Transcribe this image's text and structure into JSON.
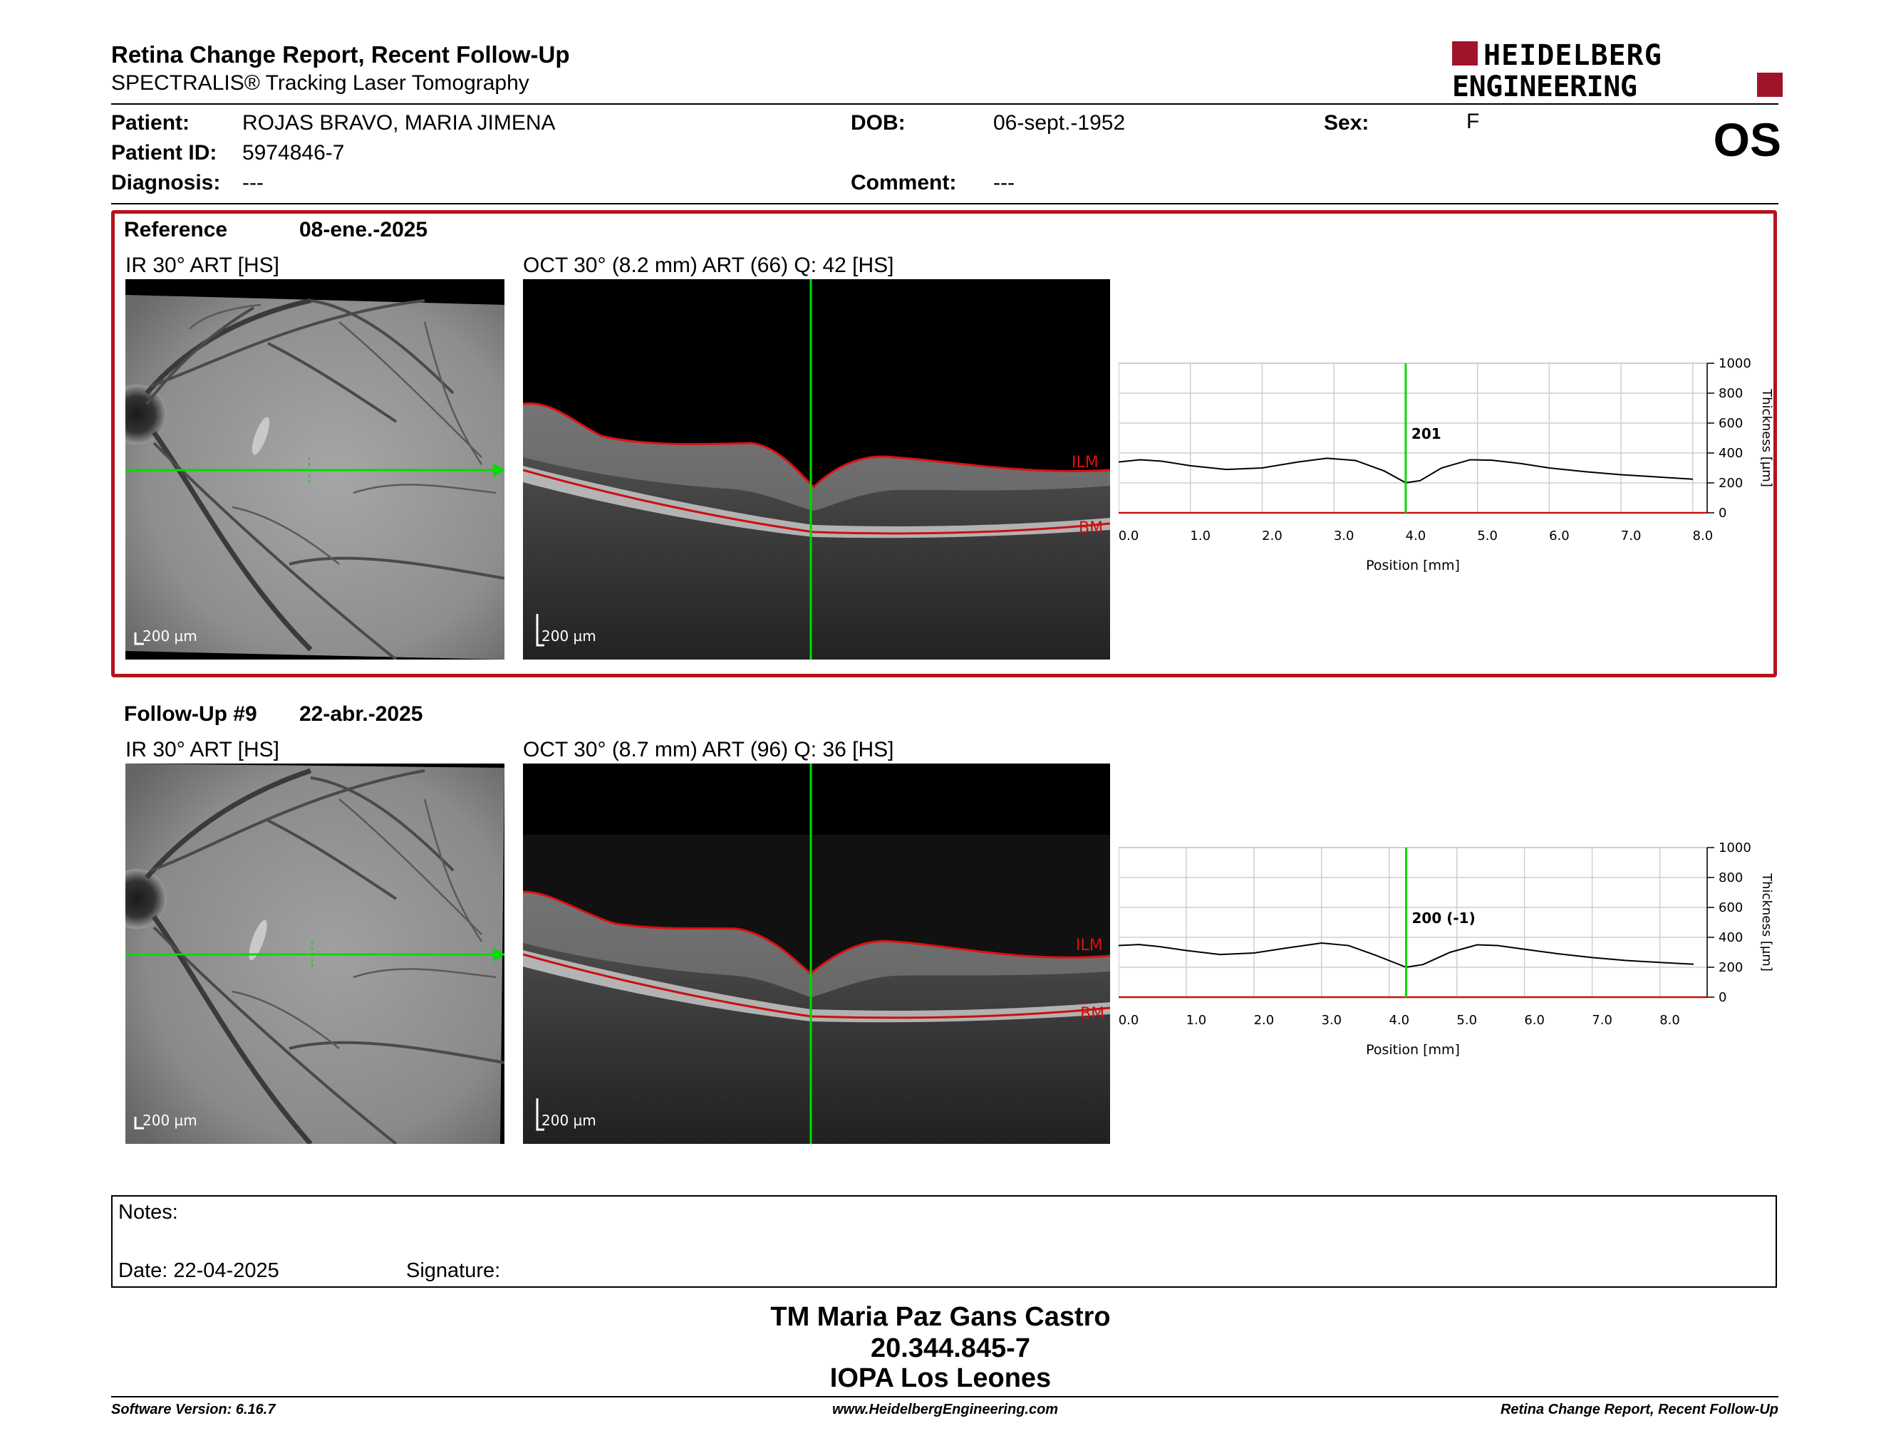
{
  "header": {
    "title": "Retina Change Report, Recent Follow-Up",
    "subtitle": "SPECTRALIS® Tracking Laser Tomography",
    "logo_line1": "HEIDELBERG",
    "logo_line2": "ENGINEERING",
    "eye": "OS"
  },
  "patient": {
    "name_label": "Patient:",
    "name": "ROJAS BRAVO, MARIA JIMENA",
    "id_label": "Patient ID:",
    "id": "5974846-7",
    "diagnosis_label": "Diagnosis:",
    "diagnosis": "---",
    "dob_label": "DOB:",
    "dob": "06-sept.-1952",
    "comment_label": "Comment:",
    "comment": "---",
    "sex_label": "Sex:",
    "sex": "F"
  },
  "colors": {
    "frame": "#b3141c",
    "scan_line": "#00dd00",
    "ilm": "#e01010",
    "bm": "#c81010",
    "logo": "#a0142a"
  },
  "reference": {
    "title": "Reference",
    "date": "08-ene.-2025",
    "ir_title": "IR 30° ART [HS]",
    "oct_title": "OCT 30° (8.2 mm) ART (66) Q: 42 [HS]",
    "ir_scale": "200 µm",
    "oct_scale": "200 µm",
    "ilm_label": "ILM",
    "bm_label": "BM",
    "cursor_position": 4.0
  },
  "followup": {
    "title": "Follow-Up #9",
    "date": "22-abr.-2025",
    "ir_title": "IR 30° ART [HS]",
    "oct_title": "OCT 30° (8.7 mm) ART (96) Q: 36 [HS]",
    "ir_scale": "200 µm",
    "oct_scale": "200 µm",
    "ilm_label": "ILM",
    "bm_label": "BM",
    "cursor_position": 4.25
  },
  "chart_data": [
    {
      "type": "line",
      "xlabel": "Position [mm]",
      "ylabel": "Thickness [µm]",
      "xlim": [
        0,
        8.2
      ],
      "ylim": [
        0,
        1000
      ],
      "x_ticks": [
        "0.0",
        "1.0",
        "2.0",
        "3.0",
        "4.0",
        "5.0",
        "6.0",
        "7.0",
        "8.0"
      ],
      "y_ticks": [
        "0",
        "200",
        "400",
        "600",
        "800",
        "1000"
      ],
      "grid": true,
      "cursor_x": 4.0,
      "cursor_label": "201",
      "x": [
        0,
        0.3,
        0.6,
        1.0,
        1.5,
        2.0,
        2.5,
        2.9,
        3.3,
        3.7,
        4.0,
        4.2,
        4.5,
        4.9,
        5.2,
        5.6,
        6.0,
        6.5,
        7.0,
        7.5,
        8.0
      ],
      "values": [
        340,
        355,
        345,
        315,
        290,
        300,
        340,
        365,
        350,
        280,
        201,
        215,
        300,
        355,
        352,
        330,
        300,
        275,
        255,
        240,
        225
      ]
    },
    {
      "type": "line",
      "xlabel": "Position [mm]",
      "ylabel": "Thickness [µm]",
      "xlim": [
        0,
        8.7
      ],
      "ylim": [
        0,
        1000
      ],
      "x_ticks": [
        "0.0",
        "1.0",
        "2.0",
        "3.0",
        "4.0",
        "5.0",
        "6.0",
        "7.0",
        "8.0"
      ],
      "y_ticks": [
        "0",
        "200",
        "400",
        "600",
        "800",
        "1000"
      ],
      "grid": true,
      "cursor_x": 4.25,
      "cursor_label": "200 (-1)",
      "x": [
        0,
        0.3,
        0.6,
        1.0,
        1.5,
        2.0,
        2.5,
        3.0,
        3.4,
        3.8,
        4.25,
        4.5,
        4.9,
        5.3,
        5.6,
        6.0,
        6.5,
        7.0,
        7.5,
        8.0,
        8.5
      ],
      "values": [
        345,
        352,
        338,
        312,
        285,
        295,
        330,
        362,
        345,
        280,
        200,
        218,
        300,
        350,
        345,
        320,
        290,
        265,
        245,
        232,
        220
      ]
    }
  ]
}
